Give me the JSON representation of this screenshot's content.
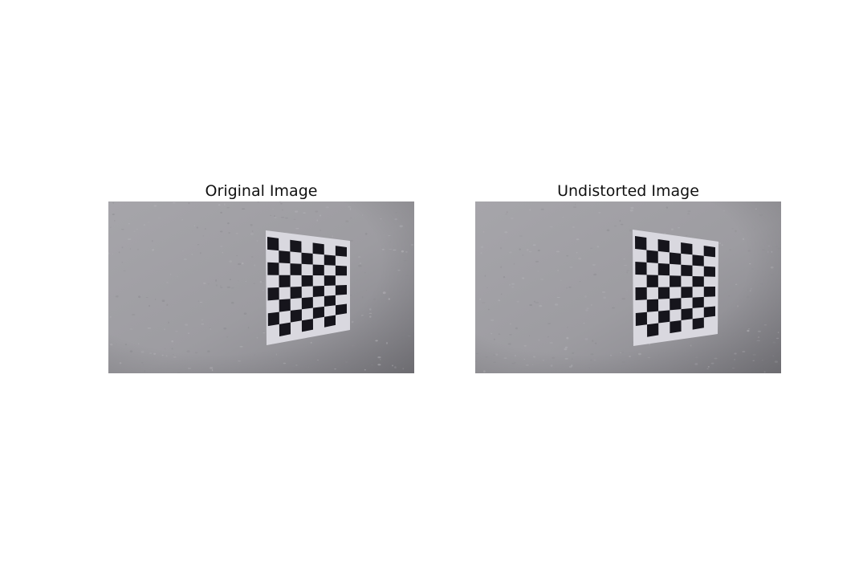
{
  "figure": {
    "background": "#ffffff",
    "panels": [
      {
        "title": "Original Image",
        "scene": "original",
        "colors": {
          "wall": "#9d9ca1",
          "paper": "#d9d8df",
          "square": "#16151c"
        }
      },
      {
        "title": "Undistorted Image",
        "scene": "undistorted",
        "colors": {
          "wall": "#9d9ca1",
          "paper": "#d9d8df",
          "square": "#16151c"
        }
      }
    ]
  }
}
